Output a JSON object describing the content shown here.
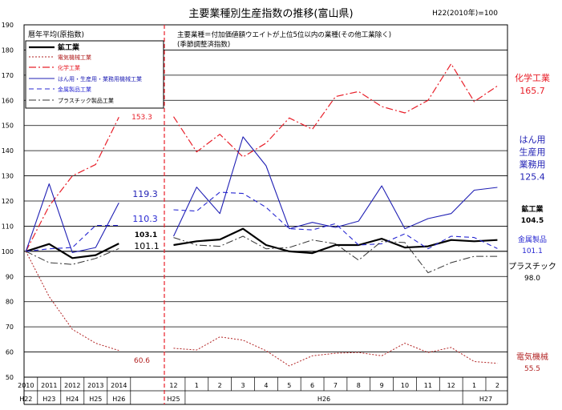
{
  "chart_data": {
    "type": "line",
    "title": "主要業種別生産指数の推移(富山県)",
    "base_note": "H22(2010年)=100",
    "ylim": [
      50,
      190
    ],
    "y_ticks": [
      50,
      60,
      70,
      80,
      90,
      100,
      110,
      120,
      130,
      140,
      150,
      160,
      170,
      180,
      190
    ],
    "grid": true,
    "annual_panel": {
      "heading": "暦年平均(原指数)",
      "x": [
        "2010",
        "2011",
        "2012",
        "2013",
        "2014"
      ],
      "era_labels": [
        "H22",
        "H23",
        "H24",
        "H25",
        "H26"
      ],
      "series": [
        {
          "key": "mining",
          "values": [
            100,
            102.9,
            97.3,
            98.5,
            103.1
          ],
          "end_label": "103.1"
        },
        {
          "key": "electric",
          "values": [
            100,
            82,
            69,
            63.5,
            60.6
          ],
          "end_label": "60.6"
        },
        {
          "key": "chemical",
          "values": [
            100,
            118,
            130,
            134.5,
            153.3
          ],
          "end_label": "153.3"
        },
        {
          "key": "general",
          "values": [
            100,
            126.8,
            99.5,
            101.5,
            119.3
          ],
          "end_label": "119.3"
        },
        {
          "key": "metal",
          "values": [
            100,
            101,
            101.5,
            110.3,
            110.3
          ],
          "end_label": "110.3"
        },
        {
          "key": "plastic",
          "values": [
            100,
            95.5,
            94.8,
            97.2,
            101.1
          ],
          "end_label": "101.1"
        }
      ]
    },
    "monthly_panel": {
      "heading_line1": "主要業種＝付加価値額ウエイトが上位5位以内の業種(その他工業除く)",
      "heading_line2": "(季節調整済指数)",
      "x": [
        "12",
        "1",
        "2",
        "3",
        "4",
        "5",
        "6",
        "7",
        "8",
        "9",
        "10",
        "11",
        "12",
        "1",
        "2"
      ],
      "era_labels": [
        {
          "text": "H25",
          "from": 0,
          "to": 0
        },
        {
          "text": "H26",
          "from": 1,
          "to": 12
        },
        {
          "text": "H27",
          "from": 13,
          "to": 14
        }
      ],
      "series": [
        {
          "key": "mining",
          "values": [
            102.5,
            104,
            104.7,
            109,
            102.5,
            100,
            99.3,
            102.5,
            102.5,
            105,
            101.5,
            102,
            104.5,
            104,
            104.5
          ]
        },
        {
          "key": "electric",
          "values": [
            61.5,
            60.8,
            66,
            64.7,
            60.5,
            54.5,
            58.5,
            59.5,
            59.8,
            58.5,
            63.5,
            59.8,
            61.8,
            56.2,
            55.5
          ]
        },
        {
          "key": "chemical",
          "values": [
            153.5,
            139.5,
            146.5,
            137.5,
            143,
            153,
            148.5,
            161.5,
            163.5,
            157.5,
            155,
            160,
            174.5,
            159.5,
            165.7
          ]
        },
        {
          "key": "general",
          "values": [
            106,
            125.5,
            115,
            145.5,
            134,
            109,
            111.5,
            109.5,
            112,
            126,
            109,
            113,
            115,
            124.3,
            125.4
          ]
        },
        {
          "key": "metal",
          "values": [
            116.5,
            116,
            123.5,
            123,
            117.5,
            109,
            108.5,
            111,
            102.5,
            103,
            107,
            101,
            106,
            105.5,
            101.1
          ]
        },
        {
          "key": "plastic",
          "values": [
            105.5,
            102.5,
            102,
            106,
            101,
            101.5,
            104.5,
            103,
            96.5,
            104,
            103.5,
            91.5,
            95.5,
            98,
            98
          ]
        }
      ]
    },
    "series_info": [
      {
        "key": "mining",
        "name": "鉱工業",
        "color": "#000000",
        "dash": "solid",
        "width": 2.2,
        "side_label_lines": [
          "鉱工業",
          "104.5"
        ],
        "side_label_color": "#000000"
      },
      {
        "key": "electric",
        "name": "電気機械工業",
        "color": "#b22222",
        "dash": "dotted",
        "width": 1,
        "side_label_lines": [
          "電気機械",
          "55.5"
        ],
        "side_label_color": "#b22222"
      },
      {
        "key": "chemical",
        "name": "化学工業",
        "color": "#e8202a",
        "dash": "dashdot",
        "width": 1.2,
        "side_label_lines": [
          "化学工業",
          "165.7"
        ],
        "side_label_color": "#e8202a"
      },
      {
        "key": "general",
        "name": "はん用・生産用・業務用機械工業",
        "color": "#1f1fb4",
        "dash": "solid",
        "width": 1.1,
        "side_label_lines": [
          "はん用",
          "生産用",
          "業務用",
          "125.4"
        ],
        "side_label_color": "#1f1fb4"
      },
      {
        "key": "metal",
        "name": "金属製品工業",
        "color": "#2828d2",
        "dash": "dashed",
        "width": 1.1,
        "side_label_lines": [
          "金属製品",
          "101.1"
        ],
        "side_label_color": "#2828d2"
      },
      {
        "key": "plastic",
        "name": "プラスチック製品工業",
        "color": "#333333",
        "dash": "dashdot",
        "width": 1,
        "side_label_lines": [
          "プラスチック",
          "98.0"
        ],
        "side_label_color": "#000000"
      }
    ]
  }
}
